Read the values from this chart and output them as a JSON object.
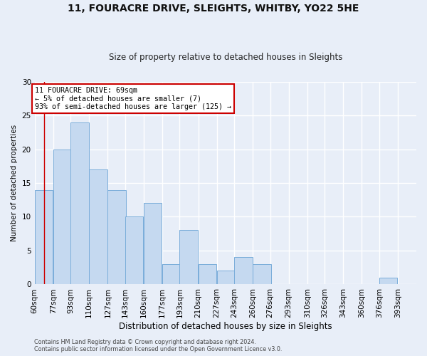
{
  "title1": "11, FOURACRE DRIVE, SLEIGHTS, WHITBY, YO22 5HE",
  "title2": "Size of property relative to detached houses in Sleights",
  "xlabel": "Distribution of detached houses by size in Sleights",
  "ylabel": "Number of detached properties",
  "bar_labels": [
    "60sqm",
    "77sqm",
    "93sqm",
    "110sqm",
    "127sqm",
    "143sqm",
    "160sqm",
    "177sqm",
    "193sqm",
    "210sqm",
    "227sqm",
    "243sqm",
    "260sqm",
    "276sqm",
    "293sqm",
    "310sqm",
    "326sqm",
    "343sqm",
    "360sqm",
    "376sqm",
    "393sqm"
  ],
  "bar_values": [
    14,
    20,
    24,
    17,
    14,
    10,
    12,
    3,
    8,
    3,
    2,
    4,
    3,
    0,
    0,
    0,
    0,
    0,
    0,
    1,
    0
  ],
  "bar_color": "#c5d9f0",
  "bar_edge_color": "#7aadda",
  "property_line_x": 69,
  "bin_starts": [
    60,
    77,
    93,
    110,
    127,
    143,
    160,
    177,
    193,
    210,
    227,
    243,
    260,
    276,
    293,
    310,
    326,
    343,
    360,
    376,
    393
  ],
  "bin_width": 17,
  "annotation_line1": "11 FOURACRE DRIVE: 69sqm",
  "annotation_line2": "← 5% of detached houses are smaller (7)",
  "annotation_line3": "93% of semi-detached houses are larger (125) →",
  "annotation_box_color": "#ffffff",
  "annotation_box_edge_color": "#cc0000",
  "vline_color": "#cc0000",
  "ylim": [
    0,
    30
  ],
  "yticks": [
    0,
    5,
    10,
    15,
    20,
    25,
    30
  ],
  "bg_color": "#e8eef8",
  "fig_bg_color": "#e8eef8",
  "grid_color": "#ffffff",
  "footer1": "Contains HM Land Registry data © Crown copyright and database right 2024.",
  "footer2": "Contains public sector information licensed under the Open Government Licence v3.0."
}
